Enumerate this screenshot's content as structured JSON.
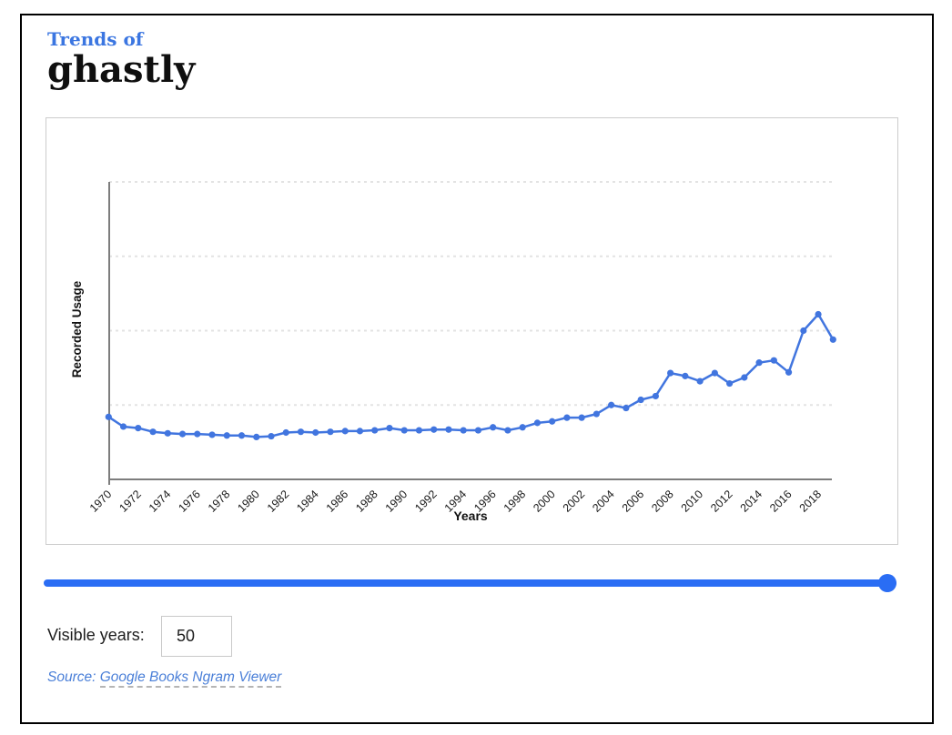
{
  "header": {
    "title_prefix": "Trends of",
    "word": "ghastly"
  },
  "chart_data": {
    "type": "line",
    "title": "",
    "xlabel": "Years",
    "ylabel": "Recorded Usage",
    "x_start": 1970,
    "x_end": 2019,
    "x": [
      1970,
      1971,
      1972,
      1973,
      1974,
      1975,
      1976,
      1977,
      1978,
      1979,
      1980,
      1981,
      1982,
      1983,
      1984,
      1985,
      1986,
      1987,
      1988,
      1989,
      1990,
      1991,
      1992,
      1993,
      1994,
      1995,
      1996,
      1997,
      1998,
      1999,
      2000,
      2001,
      2002,
      2003,
      2004,
      2005,
      2006,
      2007,
      2008,
      2009,
      2010,
      2011,
      2012,
      2013,
      2014,
      2015,
      2016,
      2017,
      2018,
      2019
    ],
    "series": [
      {
        "name": "ghastly",
        "values": [
          0.84,
          0.71,
          0.69,
          0.64,
          0.62,
          0.61,
          0.61,
          0.6,
          0.59,
          0.59,
          0.57,
          0.58,
          0.63,
          0.64,
          0.63,
          0.64,
          0.65,
          0.65,
          0.66,
          0.69,
          0.66,
          0.66,
          0.67,
          0.67,
          0.66,
          0.66,
          0.7,
          0.66,
          0.7,
          0.76,
          0.78,
          0.83,
          0.83,
          0.88,
          1.0,
          0.96,
          1.07,
          1.12,
          1.43,
          1.39,
          1.32,
          1.43,
          1.29,
          1.37,
          1.57,
          1.6,
          1.44,
          2.0,
          2.22,
          1.88
        ]
      }
    ],
    "x_tick_labels": [
      "1970",
      "1972",
      "1974",
      "1976",
      "1978",
      "1980",
      "1982",
      "1984",
      "1986",
      "1988",
      "1990",
      "1992",
      "1994",
      "1996",
      "1998",
      "2000",
      "2002",
      "2004",
      "2006",
      "2008",
      "2010",
      "2012",
      "2014",
      "2016",
      "2018"
    ],
    "y_tick_labels": [],
    "ylim": [
      0,
      4
    ],
    "grid": "horizontal-dashed",
    "legend": "none",
    "marker": "circle"
  },
  "slider": {
    "value": "50",
    "position": "max"
  },
  "controls": {
    "visible_years_label": "Visible years:",
    "visible_years_value": "50"
  },
  "source": {
    "prefix": "Source: ",
    "link_text": "Google Books Ngram Viewer"
  },
  "colors": {
    "title_accent": "#3b76e1",
    "line": "#4175df",
    "slider": "#2a6df4",
    "link": "#4a7fd8",
    "axis": "#7d7d7d",
    "grid": "#e3e3e3",
    "tick_text": "#1a1a1a"
  }
}
